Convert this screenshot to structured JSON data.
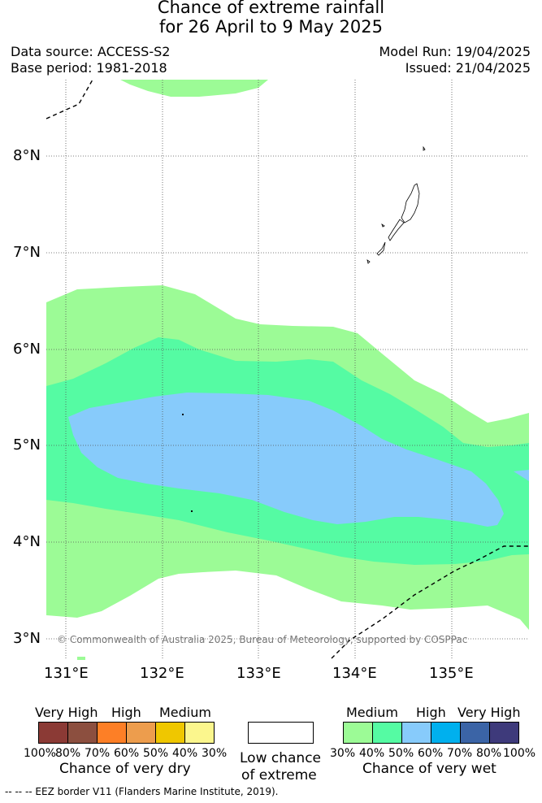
{
  "title": {
    "line1": "Chance of extreme rainfall",
    "line2": "for 26 April to 9 May 2025"
  },
  "meta": {
    "data_source": "Data source: ACCESS-S2",
    "base_period": "Base period: 1981-2018",
    "model_run": "Model Run: 19/04/2025",
    "issued": "Issued: 21/04/2025"
  },
  "map": {
    "lat_labels": [
      "8°N",
      "7°N",
      "6°N",
      "5°N",
      "4°N",
      "3°N"
    ],
    "lon_labels": [
      "131°E",
      "132°E",
      "133°E",
      "134°E",
      "135°E"
    ],
    "copyright": "© Commonwealth of Australia 2025, Bureau of Meteorology, supported by COSPPac",
    "colors": {
      "wet_medium_30_40": "#9cfb96",
      "wet_medium_40_50": "#55fba3",
      "wet_high_50_60": "#87cbfb",
      "land": "#ffffff",
      "grid": "#555555"
    }
  },
  "legend": {
    "dry": {
      "headers": [
        "Very High",
        "High",
        "Medium"
      ],
      "percents": [
        "100%",
        "80%",
        "70%",
        "60%",
        "50%",
        "40%",
        "30%"
      ],
      "caption": "Chance of very dry",
      "colors": [
        "#8b3a35",
        "#8c4f3f",
        "#fd7f26",
        "#ed9d4d",
        "#efc700",
        "#fbf68d"
      ]
    },
    "low": {
      "caption_line1": "Low chance",
      "caption_line2": "of extreme"
    },
    "wet": {
      "headers": [
        "Medium",
        "High",
        "Very High"
      ],
      "percents": [
        "30%",
        "40%",
        "50%",
        "60%",
        "70%",
        "80%",
        "100%"
      ],
      "caption": "Chance of very wet",
      "colors": [
        "#9cfb96",
        "#55fba3",
        "#87cbfb",
        "#00b0ee",
        "#3b64a6",
        "#3e3a7b"
      ]
    }
  },
  "footer": "--  --  -- EEZ border V11 (Flanders Marine Institute, 2019)."
}
